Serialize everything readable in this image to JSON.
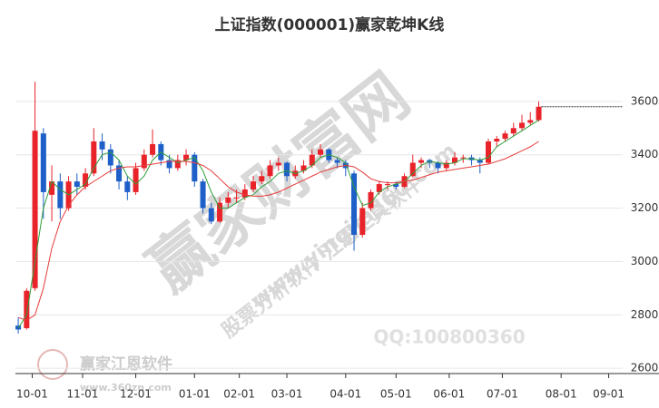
{
  "chart_data": {
    "type": "candlestick",
    "title": "上证指数(000001)赢家乾坤K线",
    "x": [
      -5,
      -2,
      1,
      4,
      7,
      10,
      13,
      16,
      19,
      22,
      25,
      28,
      31,
      34,
      37,
      40,
      43,
      46,
      49,
      52,
      55,
      58,
      61,
      64,
      67,
      70,
      73,
      76,
      79,
      82,
      85,
      88,
      91,
      94,
      97,
      100,
      103,
      106,
      109,
      112,
      115,
      118,
      121,
      124,
      127,
      130,
      133,
      136,
      139,
      142,
      145,
      148,
      151,
      154,
      157,
      160,
      163,
      166,
      169,
      172,
      175,
      178,
      181
    ],
    "open": [
      2760,
      2750,
      2900,
      3480,
      3250,
      3300,
      3200,
      3300,
      3280,
      3330,
      3450,
      3420,
      3360,
      3300,
      3260,
      3350,
      3400,
      3440,
      3380,
      3350,
      3380,
      3400,
      3300,
      3200,
      3150,
      3220,
      3240,
      3240,
      3270,
      3300,
      3320,
      3360,
      3370,
      3320,
      3340,
      3360,
      3400,
      3420,
      3380,
      3370,
      3330,
      3100,
      3200,
      3260,
      3290,
      3290,
      3280,
      3320,
      3370,
      3380,
      3370,
      3350,
      3370,
      3390,
      3390,
      3380,
      3370,
      3450,
      3460,
      3480,
      3500,
      3520,
      3530
    ],
    "high": [
      2790,
      2900,
      3674,
      3500,
      3360,
      3330,
      3320,
      3330,
      3350,
      3500,
      3480,
      3440,
      3380,
      3320,
      3370,
      3420,
      3495,
      3450,
      3400,
      3400,
      3420,
      3410,
      3310,
      3220,
      3240,
      3260,
      3270,
      3290,
      3320,
      3340,
      3380,
      3390,
      3375,
      3360,
      3380,
      3420,
      3440,
      3425,
      3390,
      3380,
      3340,
      3220,
      3270,
      3300,
      3300,
      3300,
      3330,
      3400,
      3390,
      3385,
      3375,
      3380,
      3410,
      3400,
      3400,
      3390,
      3460,
      3470,
      3490,
      3520,
      3550,
      3560,
      3600
    ],
    "low": [
      2730,
      2745,
      2890,
      3160,
      3150,
      3160,
      3190,
      3250,
      3270,
      3320,
      3380,
      3330,
      3270,
      3230,
      3250,
      3340,
      3390,
      3360,
      3330,
      3340,
      3360,
      3280,
      3180,
      3140,
      3145,
      3200,
      3220,
      3230,
      3260,
      3290,
      3310,
      3340,
      3300,
      3310,
      3330,
      3350,
      3390,
      3370,
      3350,
      3320,
      3040,
      3090,
      3190,
      3250,
      3270,
      3270,
      3275,
      3315,
      3350,
      3350,
      3330,
      3340,
      3360,
      3370,
      3360,
      3330,
      3365,
      3430,
      3450,
      3470,
      3490,
      3510,
      3525
    ],
    "close": [
      2745,
      2890,
      3490,
      3260,
      3300,
      3200,
      3300,
      3280,
      3330,
      3450,
      3420,
      3360,
      3300,
      3260,
      3350,
      3400,
      3440,
      3380,
      3350,
      3380,
      3400,
      3300,
      3200,
      3150,
      3220,
      3240,
      3240,
      3270,
      3300,
      3320,
      3360,
      3370,
      3320,
      3340,
      3360,
      3400,
      3420,
      3380,
      3370,
      3350,
      3100,
      3200,
      3260,
      3290,
      3290,
      3280,
      3320,
      3370,
      3380,
      3370,
      3350,
      3370,
      3390,
      3390,
      3380,
      3370,
      3450,
      3460,
      3480,
      3500,
      3520,
      3530,
      3580
    ],
    "up_color": "#e8232a",
    "down_color": "#1e5fc8",
    "ma_lines": [
      {
        "color": "#2e9e3a",
        "values": [
          2750,
          2800,
          3000,
          3200,
          3300,
          3270,
          3250,
          3270,
          3290,
          3350,
          3400,
          3410,
          3380,
          3320,
          3290,
          3320,
          3380,
          3410,
          3390,
          3370,
          3380,
          3390,
          3340,
          3260,
          3200,
          3200,
          3220,
          3240,
          3250,
          3280,
          3300,
          3330,
          3340,
          3330,
          3340,
          3360,
          3390,
          3400,
          3390,
          3370,
          3280,
          3210,
          3220,
          3260,
          3280,
          3290,
          3300,
          3330,
          3360,
          3375,
          3370,
          3365,
          3370,
          3385,
          3385,
          3380,
          3390,
          3430,
          3450,
          3470,
          3490,
          3510,
          3530
        ]
      },
      {
        "color": "#e83a3a",
        "values": [
          2790,
          2780,
          2800,
          2900,
          3050,
          3150,
          3210,
          3250,
          3280,
          3300,
          3320,
          3340,
          3350,
          3355,
          3355,
          3360,
          3365,
          3370,
          3375,
          3375,
          3375,
          3370,
          3360,
          3340,
          3310,
          3280,
          3260,
          3250,
          3245,
          3245,
          3250,
          3260,
          3275,
          3290,
          3305,
          3320,
          3335,
          3345,
          3355,
          3360,
          3355,
          3335,
          3310,
          3300,
          3295,
          3295,
          3300,
          3305,
          3315,
          3325,
          3335,
          3340,
          3345,
          3350,
          3355,
          3360,
          3365,
          3375,
          3385,
          3400,
          3415,
          3430,
          3450
        ]
      }
    ],
    "xlim": [
      -6,
      211
    ],
    "ylim": [
      2580,
      3800
    ],
    "xticks": [
      {
        "value": 0,
        "label": "10-01"
      },
      {
        "value": 18,
        "label": "11-01"
      },
      {
        "value": 37,
        "label": "12-01"
      },
      {
        "value": 58,
        "label": "01-01"
      },
      {
        "value": 74,
        "label": "02-01"
      },
      {
        "value": 91,
        "label": "03-01"
      },
      {
        "value": 112,
        "label": "04-01"
      },
      {
        "value": 130,
        "label": "05-01"
      },
      {
        "value": 149,
        "label": "06-01"
      },
      {
        "value": 168,
        "label": "07-01"
      },
      {
        "value": 189,
        "label": "08-01"
      },
      {
        "value": 206,
        "label": "09-01"
      }
    ],
    "yticks": [
      2600,
      2800,
      3000,
      3200,
      3400,
      3600
    ],
    "grid": true,
    "watermarks": {
      "big": "赢家财富网",
      "slogan": "股票分析软件 江恩工具软件",
      "site": "www.yingjia360.com",
      "qq": "QQ:100800360",
      "logo": "赢家江恩软件",
      "logo_site": "www.360zn.com"
    }
  }
}
